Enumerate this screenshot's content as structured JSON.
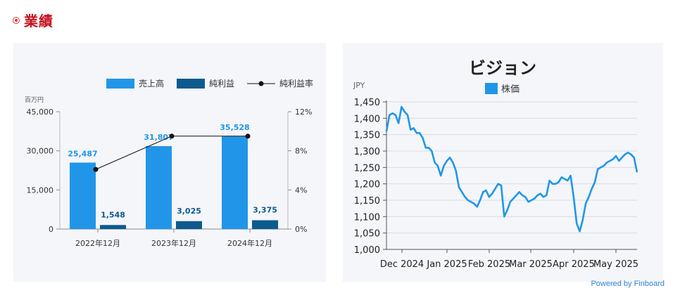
{
  "section": {
    "title": "業績"
  },
  "powered_by": "Powered by Finboard",
  "colors": {
    "sales": "#2196e8",
    "profit": "#0d5a8e",
    "rate": "#111111",
    "stock": "#2196e8",
    "title_red": "#c4141e"
  },
  "chart_data": [
    {
      "type": "bar",
      "title": "",
      "y_unit_label": "百万円",
      "categories": [
        "2022年12月",
        "2023年12月",
        "2024年12月"
      ],
      "series": [
        {
          "name": "売上高",
          "type": "bar",
          "values": [
            25487,
            31807,
            35528
          ],
          "labels": [
            "25,487",
            "31,807",
            "35,528"
          ]
        },
        {
          "name": "純利益",
          "type": "bar",
          "values": [
            1548,
            3025,
            3375
          ],
          "labels": [
            "1,548",
            "3,025",
            "3,375"
          ]
        },
        {
          "name": "純利益率",
          "type": "line",
          "axis": "right",
          "values": [
            6.1,
            9.5,
            9.5
          ]
        }
      ],
      "ylim": [
        0,
        45000
      ],
      "yticks": [
        "0",
        "15,000",
        "30,000",
        "45,000"
      ],
      "ytick_values": [
        0,
        15000,
        30000,
        45000
      ],
      "y2lim": [
        0,
        12
      ],
      "y2ticks": [
        "0%",
        "4%",
        "8%",
        "12%"
      ],
      "y2tick_values": [
        0,
        4,
        8,
        12
      ],
      "legend_position": "top-right",
      "grid": false
    },
    {
      "type": "line",
      "title": "ビジョン",
      "ylabel": "JPY",
      "series": [
        {
          "name": "株価",
          "values": [
            1360,
            1410,
            1415,
            1410,
            1385,
            1435,
            1420,
            1410,
            1365,
            1370,
            1355,
            1355,
            1340,
            1310,
            1310,
            1300,
            1265,
            1255,
            1225,
            1255,
            1270,
            1280,
            1265,
            1240,
            1190,
            1175,
            1160,
            1150,
            1145,
            1140,
            1130,
            1150,
            1175,
            1180,
            1160,
            1170,
            1185,
            1200,
            1195,
            1100,
            1120,
            1145,
            1155,
            1165,
            1175,
            1165,
            1160,
            1145,
            1150,
            1155,
            1165,
            1170,
            1160,
            1165,
            1210,
            1200,
            1200,
            1205,
            1220,
            1215,
            1210,
            1225,
            1160,
            1080,
            1055,
            1090,
            1140,
            1160,
            1185,
            1205,
            1245,
            1250,
            1255,
            1265,
            1270,
            1275,
            1285,
            1270,
            1280,
            1290,
            1295,
            1290,
            1280,
            1235
          ]
        }
      ],
      "x_points": 84,
      "x_ticks": [
        "Dec 2024",
        "Jan 2025",
        "Feb 2025",
        "Mar 2025",
        "Apr 2025",
        "May 2025"
      ],
      "ylim": [
        1000,
        1450
      ],
      "yticks": [
        "1,000",
        "1,050",
        "1,100",
        "1,150",
        "1,200",
        "1,250",
        "1,300",
        "1,350",
        "1,400",
        "1,450"
      ],
      "ytick_values": [
        1000,
        1050,
        1100,
        1150,
        1200,
        1250,
        1300,
        1350,
        1400,
        1450
      ],
      "legend_position": "top",
      "grid": true
    }
  ]
}
